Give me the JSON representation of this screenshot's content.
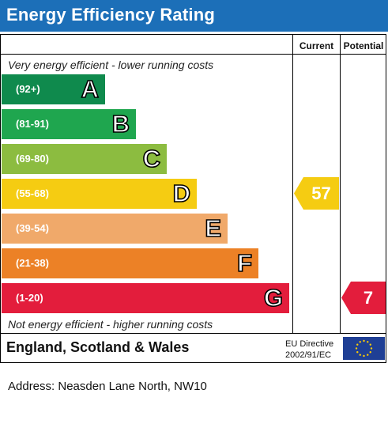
{
  "header": {
    "title": "Energy Efficiency Rating"
  },
  "columns": {
    "current": "Current",
    "potential": "Potential"
  },
  "notes": {
    "top": "Very energy efficient - lower running costs",
    "bottom": "Not energy efficient - higher running costs"
  },
  "chart_data": {
    "type": "bar",
    "title": "Energy Efficiency Rating",
    "bands": [
      {
        "letter": "A",
        "range": "(92+)",
        "color": "#0f8a4d"
      },
      {
        "letter": "B",
        "range": "(81-91)",
        "color": "#1fa64f"
      },
      {
        "letter": "C",
        "range": "(69-80)",
        "color": "#8cbc40"
      },
      {
        "letter": "D",
        "range": "(55-68)",
        "color": "#f5cc12"
      },
      {
        "letter": "E",
        "range": "(39-54)",
        "color": "#f0a96a"
      },
      {
        "letter": "F",
        "range": "(21-38)",
        "color": "#ec8126"
      },
      {
        "letter": "G",
        "range": "(1-20)",
        "color": "#e31d3c"
      }
    ],
    "current": {
      "value": 57,
      "band": "D",
      "color": "#f5cc12"
    },
    "potential": {
      "value": 7,
      "band": "G",
      "color": "#e31d3c"
    }
  },
  "footer": {
    "region": "England, Scotland & Wales",
    "directive_line1": "EU Directive",
    "directive_line2": "2002/91/EC"
  },
  "address": "Address: Neasden Lane North, NW10"
}
